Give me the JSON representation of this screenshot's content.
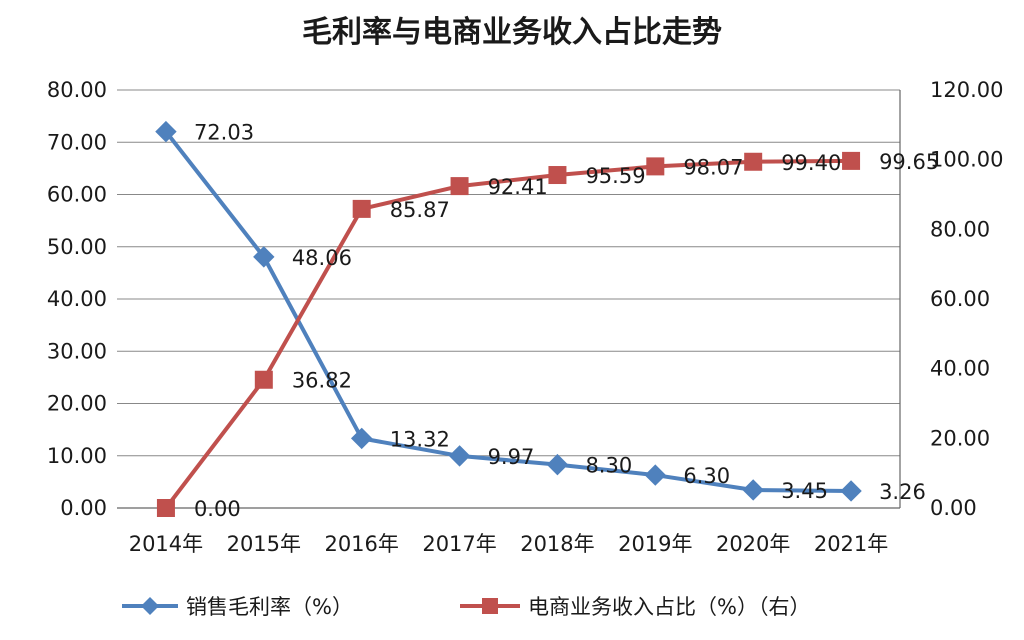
{
  "chart_data": {
    "type": "line",
    "title": "毛利率与电商业务收入占比走势",
    "categories": [
      "2014年",
      "2015年",
      "2016年",
      "2017年",
      "2018年",
      "2019年",
      "2020年",
      "2021年"
    ],
    "y_left": {
      "min": 0,
      "max": 80,
      "step": 10,
      "ticks": [
        "0.00",
        "10.00",
        "20.00",
        "30.00",
        "40.00",
        "50.00",
        "60.00",
        "70.00",
        "80.00"
      ]
    },
    "y_right": {
      "min": 0,
      "max": 120,
      "step": 20,
      "ticks": [
        "0.00",
        "20.00",
        "40.00",
        "60.00",
        "80.00",
        "100.00",
        "120.00"
      ]
    },
    "grid": true,
    "legend_position": "bottom",
    "series": [
      {
        "name": "销售毛利率（%）",
        "axis": "left",
        "color": "#4F81BD",
        "marker": "diamond",
        "values": [
          72.03,
          48.06,
          13.32,
          9.97,
          8.3,
          6.3,
          3.45,
          3.26
        ],
        "labels": [
          "72.03",
          "48.06",
          "13.32",
          "9.97",
          "8.30",
          "6.30",
          "3.45",
          "3.26"
        ]
      },
      {
        "name": "电商业务收入占比（%）（右）",
        "axis": "right",
        "color": "#C0504D",
        "marker": "square",
        "values": [
          0.0,
          36.82,
          85.87,
          92.41,
          95.59,
          98.07,
          99.4,
          99.65
        ],
        "labels": [
          "0.00",
          "36.82",
          "85.87",
          "92.41",
          "95.59",
          "98.07",
          "99.40",
          "99.65"
        ]
      }
    ]
  }
}
